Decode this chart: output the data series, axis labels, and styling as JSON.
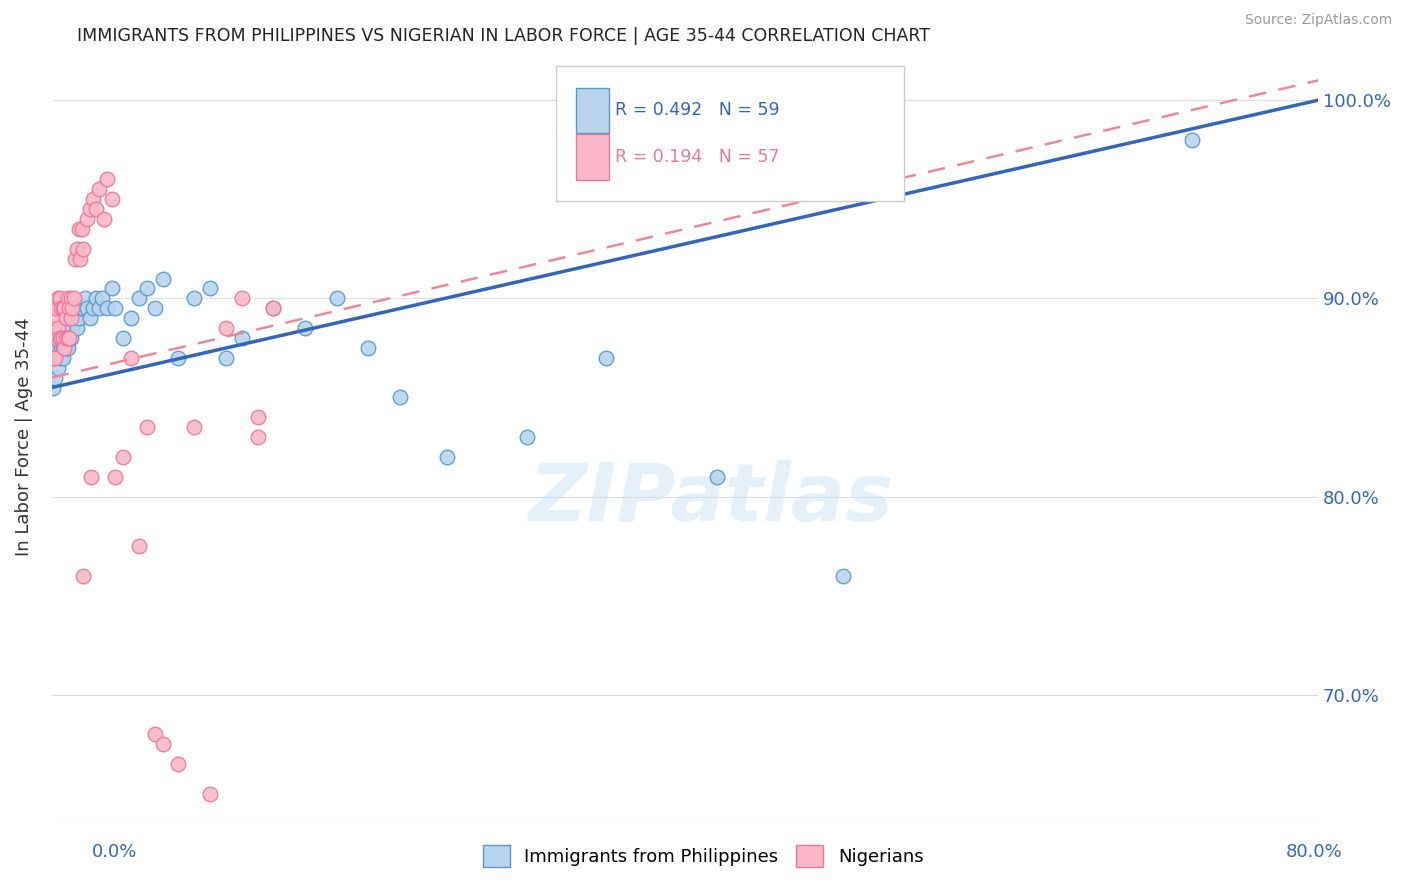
{
  "title": "IMMIGRANTS FROM PHILIPPINES VS NIGERIAN IN LABOR FORCE | AGE 35-44 CORRELATION CHART",
  "source": "Source: ZipAtlas.com",
  "ylabel": "In Labor Force | Age 35-44",
  "ytick_values": [
    0.7,
    0.8,
    0.9,
    1.0
  ],
  "ytick_labels": [
    "70.0%",
    "80.0%",
    "90.0%",
    "100.0%"
  ],
  "xmin": 0.0,
  "xmax": 0.8,
  "ymin": 0.635,
  "ymax": 1.025,
  "philippines_color": "#b8d4ec",
  "nigeria_color": "#f8b8c8",
  "philippines_edge_color": "#5599cc",
  "nigeria_edge_color": "#ee7799",
  "philippines_line_color": "#3366bb",
  "nigeria_line_color": "#ee8899",
  "watermark": "ZIPatlas",
  "philippines_scatter_x": [
    0.001,
    0.002,
    0.003,
    0.003,
    0.004,
    0.004,
    0.005,
    0.005,
    0.006,
    0.006,
    0.007,
    0.007,
    0.008,
    0.008,
    0.009,
    0.009,
    0.01,
    0.01,
    0.011,
    0.012,
    0.013,
    0.014,
    0.015,
    0.016,
    0.017,
    0.018,
    0.02,
    0.021,
    0.022,
    0.024,
    0.026,
    0.028,
    0.03,
    0.032,
    0.035,
    0.038,
    0.04,
    0.045,
    0.05,
    0.055,
    0.06,
    0.065,
    0.07,
    0.08,
    0.09,
    0.1,
    0.11,
    0.12,
    0.14,
    0.16,
    0.18,
    0.2,
    0.22,
    0.25,
    0.3,
    0.35,
    0.42,
    0.5,
    0.72
  ],
  "philippines_scatter_y": [
    0.855,
    0.86,
    0.87,
    0.875,
    0.865,
    0.875,
    0.87,
    0.88,
    0.875,
    0.885,
    0.87,
    0.875,
    0.88,
    0.885,
    0.875,
    0.88,
    0.875,
    0.885,
    0.89,
    0.88,
    0.885,
    0.89,
    0.895,
    0.885,
    0.89,
    0.895,
    0.895,
    0.9,
    0.895,
    0.89,
    0.895,
    0.9,
    0.895,
    0.9,
    0.895,
    0.905,
    0.895,
    0.88,
    0.89,
    0.9,
    0.905,
    0.895,
    0.91,
    0.87,
    0.9,
    0.905,
    0.87,
    0.88,
    0.895,
    0.885,
    0.9,
    0.875,
    0.85,
    0.82,
    0.83,
    0.87,
    0.81,
    0.76,
    0.98
  ],
  "nigeria_scatter_x": [
    0.001,
    0.001,
    0.002,
    0.002,
    0.003,
    0.003,
    0.004,
    0.004,
    0.005,
    0.005,
    0.006,
    0.006,
    0.007,
    0.007,
    0.008,
    0.008,
    0.009,
    0.009,
    0.01,
    0.01,
    0.011,
    0.011,
    0.012,
    0.012,
    0.013,
    0.014,
    0.015,
    0.016,
    0.017,
    0.018,
    0.019,
    0.02,
    0.022,
    0.024,
    0.026,
    0.028,
    0.03,
    0.033,
    0.035,
    0.038,
    0.04,
    0.045,
    0.05,
    0.055,
    0.06,
    0.065,
    0.07,
    0.08,
    0.09,
    0.1,
    0.11,
    0.12,
    0.13,
    0.14,
    0.13,
    0.02,
    0.025
  ],
  "nigeria_scatter_y": [
    0.87,
    0.885,
    0.87,
    0.89,
    0.88,
    0.895,
    0.885,
    0.9,
    0.88,
    0.9,
    0.88,
    0.895,
    0.88,
    0.895,
    0.875,
    0.895,
    0.88,
    0.89,
    0.88,
    0.9,
    0.895,
    0.88,
    0.89,
    0.9,
    0.895,
    0.9,
    0.92,
    0.925,
    0.935,
    0.92,
    0.935,
    0.925,
    0.94,
    0.945,
    0.95,
    0.945,
    0.955,
    0.94,
    0.96,
    0.95,
    0.81,
    0.82,
    0.87,
    0.775,
    0.835,
    0.68,
    0.675,
    0.665,
    0.835,
    0.65,
    0.885,
    0.9,
    0.84,
    0.895,
    0.83,
    0.76,
    0.81
  ],
  "phil_trend_x0": 0.0,
  "phil_trend_x1": 0.8,
  "phil_trend_y0": 0.855,
  "phil_trend_y1": 1.0,
  "nig_trend_x0": 0.0,
  "nig_trend_x1": 0.8,
  "nig_trend_y0": 0.86,
  "nig_trend_y1": 1.01
}
